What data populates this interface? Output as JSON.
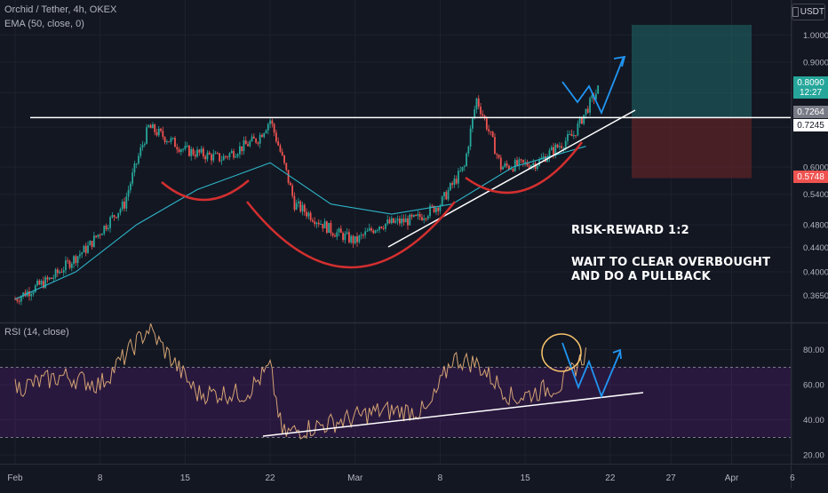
{
  "symbol_title": "Orchid / Tether, 4h, OKEX",
  "ema_label": "EMA (50, close, 0)",
  "rsi_label": "RSI (14, close)",
  "currency": "USDT",
  "annotations": {
    "line1": "RISK-REWARD 1:2",
    "line2": "WAIT TO CLEAR OVERBOUGHT",
    "line3": "AND DO A PULLBACK"
  },
  "price_badges": {
    "current_price": "0.8090",
    "countdown": "12:27",
    "line_level": "0.7264",
    "entry_level": "0.7245",
    "stop_level": "0.5748"
  },
  "colors": {
    "background": "#131722",
    "candle_up": "#26a69a",
    "candle_down": "#ef5350",
    "ema": "#2db5c8",
    "rsi": "#d4a373",
    "rsi_band": "#7b1fa2",
    "pattern_curve": "#d32f2f",
    "trendline": "#ffffff",
    "target_zone": "#1f6b6b",
    "stop_zone": "#6b2428",
    "badge_green": "#26a69a",
    "badge_red": "#ef5350",
    "badge_grey": "#787b86"
  },
  "chart_data": [
    {
      "type": "candlestick",
      "panel": "price",
      "title": "Orchid / Tether, 4h, OKEX",
      "ylabel": "USDT",
      "scale": "log",
      "ylim": [
        0.33,
        1.08
      ],
      "x_ticks": [
        "Feb",
        "8",
        "15",
        "22",
        "Mar",
        "8",
        "15",
        "22",
        "27",
        "Apr",
        "6"
      ],
      "y_ticks": [
        1.0,
        0.9,
        0.8,
        0.7,
        0.6,
        0.54,
        0.48,
        0.44,
        0.4,
        0.365
      ],
      "y_tick_labels": [
        "1.0000",
        "0.9000",
        "0.8000",
        "0.7000",
        "0.6000",
        "0.5400",
        "0.4800",
        "0.4400",
        "0.4000",
        "0.3650"
      ],
      "series": [
        {
          "name": "EMA (50, close, 0)",
          "indicator": "ema",
          "points": [
            {
              "x": "2021-02-01",
              "y": 0.36
            },
            {
              "x": "2021-02-06",
              "y": 0.4
            },
            {
              "x": "2021-02-11",
              "y": 0.48
            },
            {
              "x": "2021-02-16",
              "y": 0.55
            },
            {
              "x": "2021-02-22",
              "y": 0.61
            },
            {
              "x": "2021-02-27",
              "y": 0.52
            },
            {
              "x": "2021-03-04",
              "y": 0.5
            },
            {
              "x": "2021-03-09",
              "y": 0.52
            },
            {
              "x": "2021-03-14",
              "y": 0.6
            },
            {
              "x": "2021-03-20",
              "y": 0.65
            }
          ]
        }
      ],
      "price_trend": [
        {
          "x": "2021-02-01",
          "y": 0.36
        },
        {
          "x": "2021-02-04",
          "y": 0.39
        },
        {
          "x": "2021-02-07",
          "y": 0.44
        },
        {
          "x": "2021-02-10",
          "y": 0.52
        },
        {
          "x": "2021-02-12",
          "y": 0.7
        },
        {
          "x": "2021-02-15",
          "y": 0.64
        },
        {
          "x": "2021-02-18",
          "y": 0.62
        },
        {
          "x": "2021-02-21",
          "y": 0.67
        },
        {
          "x": "2021-02-22",
          "y": 0.72
        },
        {
          "x": "2021-02-24",
          "y": 0.52
        },
        {
          "x": "2021-02-27",
          "y": 0.47
        },
        {
          "x": "2021-03-01",
          "y": 0.45
        },
        {
          "x": "2021-03-03",
          "y": 0.48
        },
        {
          "x": "2021-03-06",
          "y": 0.49
        },
        {
          "x": "2021-03-08",
          "y": 0.52
        },
        {
          "x": "2021-03-10",
          "y": 0.6
        },
        {
          "x": "2021-03-11",
          "y": 0.78
        },
        {
          "x": "2021-03-13",
          "y": 0.6
        },
        {
          "x": "2021-03-16",
          "y": 0.61
        },
        {
          "x": "2021-03-19",
          "y": 0.68
        },
        {
          "x": "2021-03-21",
          "y": 0.81
        }
      ],
      "horizontal_line": 0.7264,
      "position_zones": {
        "target_top": 1.04,
        "entry": 0.7264,
        "stop": 0.5748
      }
    },
    {
      "type": "line",
      "panel": "rsi",
      "title": "RSI (14, close)",
      "ylim": [
        15,
        95
      ],
      "y_ticks": [
        80,
        60,
        40,
        20
      ],
      "y_tick_labels": [
        "80.00",
        "60.00",
        "40.00",
        "20.00"
      ],
      "band": [
        30,
        70
      ],
      "series": [
        {
          "name": "RSI (14, close)",
          "points": [
            {
              "x": "2021-02-01",
              "y": 58
            },
            {
              "x": "2021-02-05",
              "y": 65
            },
            {
              "x": "2021-02-08",
              "y": 60
            },
            {
              "x": "2021-02-12",
              "y": 92
            },
            {
              "x": "2021-02-16",
              "y": 55
            },
            {
              "x": "2021-02-20",
              "y": 55
            },
            {
              "x": "2021-02-22",
              "y": 70
            },
            {
              "x": "2021-02-23",
              "y": 32
            },
            {
              "x": "2021-02-27",
              "y": 38
            },
            {
              "x": "2021-03-03",
              "y": 45
            },
            {
              "x": "2021-03-07",
              "y": 45
            },
            {
              "x": "2021-03-09",
              "y": 75
            },
            {
              "x": "2021-03-11",
              "y": 72
            },
            {
              "x": "2021-03-14",
              "y": 52
            },
            {
              "x": "2021-03-18",
              "y": 60
            },
            {
              "x": "2021-03-20",
              "y": 78
            }
          ]
        }
      ]
    }
  ]
}
